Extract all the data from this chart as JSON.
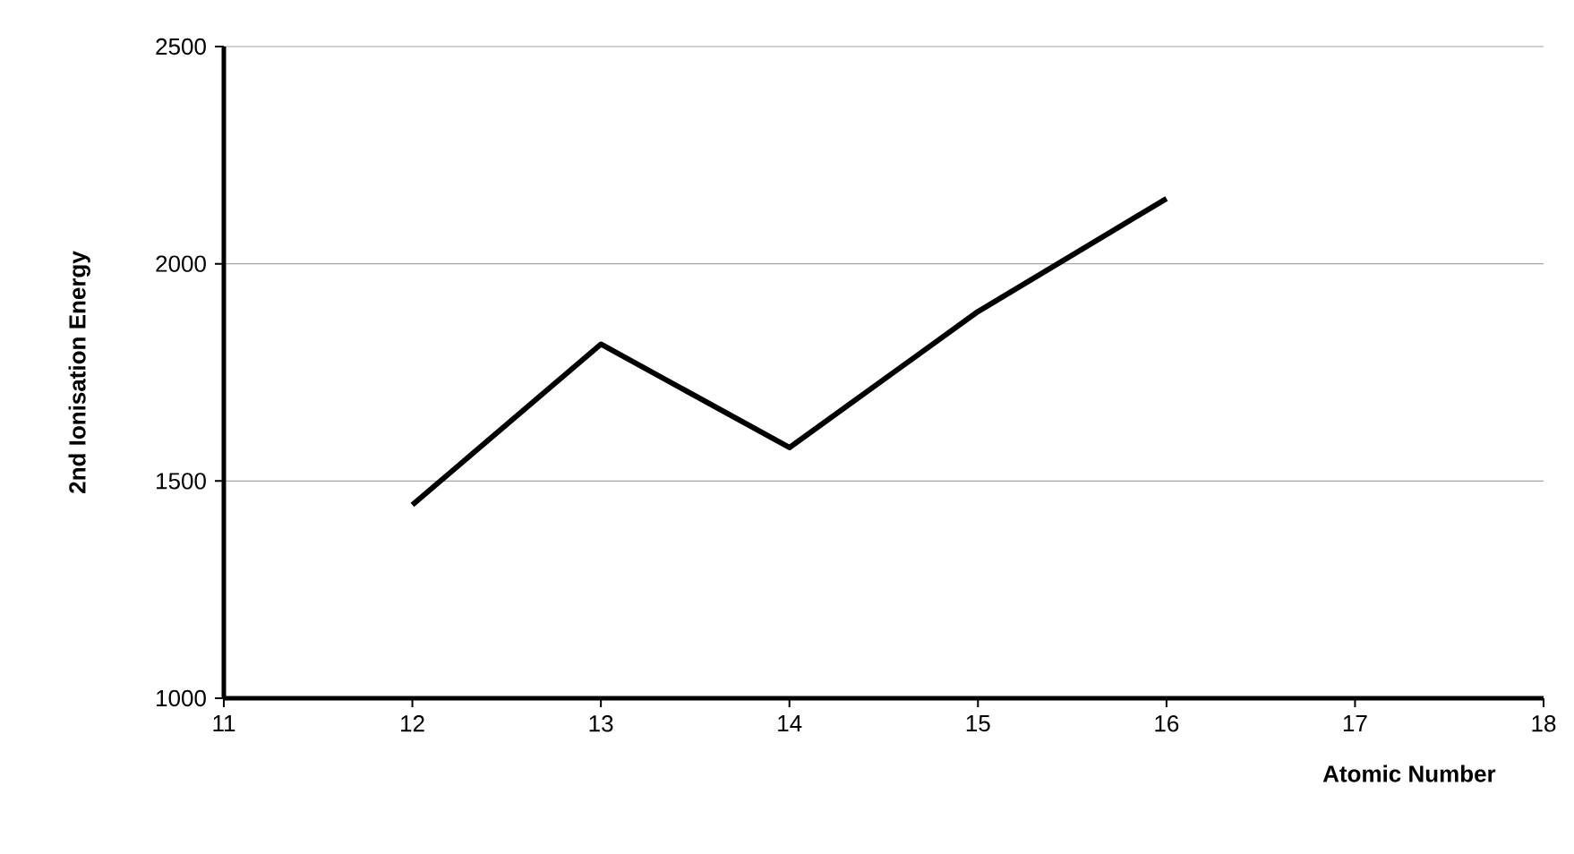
{
  "chart_data": {
    "type": "line",
    "xlabel": "Atomic Number",
    "ylabel": "2nd Ionisation Energy",
    "x": [
      12,
      13,
      14,
      15,
      16
    ],
    "series": [
      {
        "color": "#000000",
        "values": [
          1445,
          1815,
          1577,
          1890,
          2150
        ]
      }
    ],
    "xlim": [
      11,
      18
    ],
    "xticks": [
      11,
      12,
      13,
      14,
      15,
      16,
      17,
      18
    ],
    "ylim": [
      1000,
      2500
    ],
    "yticks": [
      1000,
      1500,
      2000,
      2500
    ],
    "grid": "y",
    "marker": "none",
    "line_style": "solid"
  }
}
